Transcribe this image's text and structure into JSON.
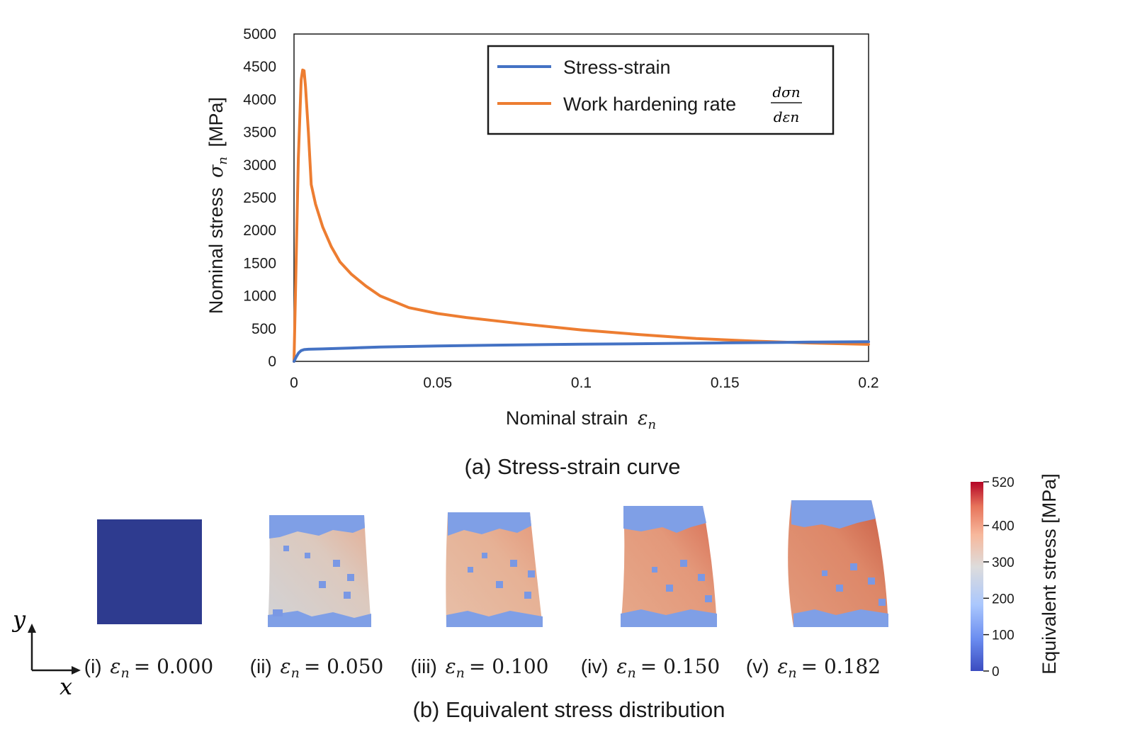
{
  "chart_data": {
    "type": "line",
    "title": "(a) Stress-strain curve",
    "xlabel": "Nominal strain ε_n",
    "ylabel": "Nominal stress σ_n [MPa]",
    "xlabel_text": "Nominal strain",
    "xlabel_symbol": "ε",
    "xlabel_sub": "n",
    "ylabel_text": "Nominal stress",
    "ylabel_symbol": "σ",
    "ylabel_sub": "n",
    "ylabel_unit": "[MPa]",
    "xlim": [
      0,
      0.2
    ],
    "ylim": [
      0,
      5000
    ],
    "xticks": [
      0,
      0.05,
      0.1,
      0.15,
      0.2
    ],
    "xtick_labels": [
      "0",
      "0.05",
      "0.1",
      "0.15",
      "0.2"
    ],
    "yticks": [
      0,
      500,
      1000,
      1500,
      2000,
      2500,
      3000,
      3500,
      4000,
      4500,
      5000
    ],
    "ytick_labels": [
      "0",
      "500",
      "1000",
      "1500",
      "2000",
      "2500",
      "3000",
      "3500",
      "4000",
      "4500",
      "5000"
    ],
    "grid": false,
    "legend_position": "top-right",
    "series": [
      {
        "name": "Stress-strain",
        "color": "#4472c4",
        "x": [
          0,
          0.0008,
          0.0016,
          0.0025,
          0.0035,
          0.005,
          0.01,
          0.02,
          0.03,
          0.05,
          0.07,
          0.1,
          0.12,
          0.15,
          0.17,
          0.182,
          0.2
        ],
        "y": [
          0,
          70,
          130,
          165,
          180,
          185,
          190,
          205,
          220,
          235,
          248,
          262,
          270,
          282,
          290,
          295,
          300
        ]
      },
      {
        "name": "Work hardening rate",
        "name_fraction": {
          "numerator": "dσn",
          "denominator": "dεn"
        },
        "color": "#ed7d31",
        "x": [
          0,
          0.0015,
          0.0025,
          0.003,
          0.0035,
          0.004,
          0.005,
          0.006,
          0.0075,
          0.01,
          0.013,
          0.016,
          0.02,
          0.025,
          0.03,
          0.04,
          0.05,
          0.06,
          0.07,
          0.08,
          0.1,
          0.12,
          0.14,
          0.16,
          0.18,
          0.2
        ],
        "y": [
          0,
          3100,
          4300,
          4450,
          4440,
          4200,
          3500,
          2700,
          2400,
          2050,
          1750,
          1520,
          1330,
          1150,
          1000,
          820,
          730,
          670,
          620,
          570,
          480,
          410,
          350,
          310,
          280,
          260
        ]
      }
    ]
  },
  "panel_b": {
    "title": "(b) Equivalent stress distribution",
    "axes": {
      "y_label": "y",
      "x_label": "x"
    },
    "panels": [
      {
        "roman": "(i)",
        "symbol": "ε",
        "sub": "n",
        "eq": "= 0.000",
        "strain": 0.0
      },
      {
        "roman": "(ii)",
        "symbol": "ε",
        "sub": "n",
        "eq": "= 0.050",
        "strain": 0.05
      },
      {
        "roman": "(iii)",
        "symbol": "ε",
        "sub": "n",
        "eq": "= 0.100",
        "strain": 0.1
      },
      {
        "roman": "(iv)",
        "symbol": "ε",
        "sub": "n",
        "eq": "= 0.150",
        "strain": 0.15
      },
      {
        "roman": "(v)",
        "symbol": "ε",
        "sub": "n",
        "eq": "= 0.182",
        "strain": 0.182
      }
    ],
    "colorbar": {
      "label": "Equivalent stress [MPa]",
      "min": 0,
      "max": 520,
      "ticks": [
        0,
        100,
        200,
        300,
        400,
        520
      ],
      "tick_labels": [
        "0",
        "100",
        "200",
        "300",
        "400",
        "520"
      ],
      "colors": [
        "#3b4cc0",
        "#6b8df0",
        "#aac7fd",
        "#dddcdc",
        "#f7b89c",
        "#e7745b",
        "#b40426"
      ]
    }
  }
}
